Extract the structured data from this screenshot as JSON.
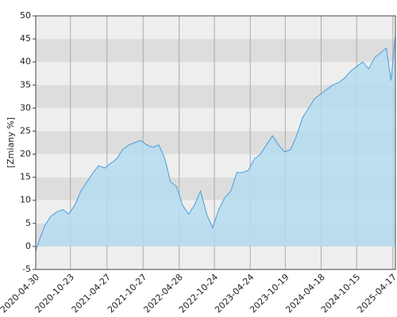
{
  "chart_data": {
    "type": "area",
    "y_label": "[Zmiany %]",
    "x": [
      "2020-04-30",
      "2020-05-15",
      "2020-06-15",
      "2020-07-15",
      "2020-08-15",
      "2020-09-15",
      "2020-10-15",
      "2020-11-15",
      "2020-12-15",
      "2021-01-15",
      "2021-02-15",
      "2021-03-15",
      "2021-04-15",
      "2021-05-15",
      "2021-06-15",
      "2021-07-15",
      "2021-08-15",
      "2021-09-15",
      "2021-10-15",
      "2021-11-15",
      "2021-12-15",
      "2022-01-15",
      "2022-02-15",
      "2022-03-15",
      "2022-04-15",
      "2022-05-15",
      "2022-06-15",
      "2022-07-15",
      "2022-08-15",
      "2022-09-15",
      "2022-10-15",
      "2022-11-15",
      "2022-12-15",
      "2023-01-15",
      "2023-02-15",
      "2023-03-15",
      "2023-04-15",
      "2023-05-15",
      "2023-06-15",
      "2023-07-15",
      "2023-08-15",
      "2023-09-15",
      "2023-10-15",
      "2023-11-15",
      "2023-12-15",
      "2024-01-15",
      "2024-02-15",
      "2024-03-15",
      "2024-04-15",
      "2024-05-15",
      "2024-06-15",
      "2024-07-15",
      "2024-08-15",
      "2024-09-15",
      "2024-10-15",
      "2024-11-15",
      "2024-12-15",
      "2025-01-15",
      "2025-02-15",
      "2025-03-15",
      "2025-04-08",
      "2025-04-30"
    ],
    "series": [
      {
        "name": "Zmiany",
        "color": "#4a9de0",
        "fill": "#b5dcee",
        "values": [
          -1,
          1,
          4.5,
          6.5,
          7.5,
          8,
          7,
          9,
          12,
          14,
          16,
          17.5,
          17,
          18,
          19,
          21,
          22,
          22.5,
          23,
          22,
          21.5,
          22,
          19,
          14,
          13,
          9,
          7,
          9,
          12,
          7,
          4,
          8,
          10.5,
          12,
          16,
          16,
          16.5,
          19,
          20,
          22,
          24,
          22,
          20.5,
          21,
          24,
          28,
          30,
          32,
          33,
          34,
          35,
          35.5,
          36.5,
          38,
          39,
          40,
          38.5,
          41,
          42,
          43,
          36,
          46
        ]
      }
    ],
    "xlim": [
      "2020-04-30",
      "2025-04-30"
    ],
    "xticks": [
      "2020-04-30",
      "2020-10-23",
      "2021-04-27",
      "2021-10-27",
      "2022-04-28",
      "2022-10-24",
      "2023-04-24",
      "2023-10-19",
      "2024-04-18",
      "2024-10-15",
      "2025-04-17"
    ],
    "ylim": [
      -5,
      50
    ],
    "yticks": [
      -5,
      0,
      5,
      10,
      15,
      20,
      25,
      30,
      35,
      40,
      45,
      50
    ],
    "band_colors": [
      "#eeeeee",
      "#dddddd"
    ],
    "grid_color": "#aaaaaa"
  }
}
